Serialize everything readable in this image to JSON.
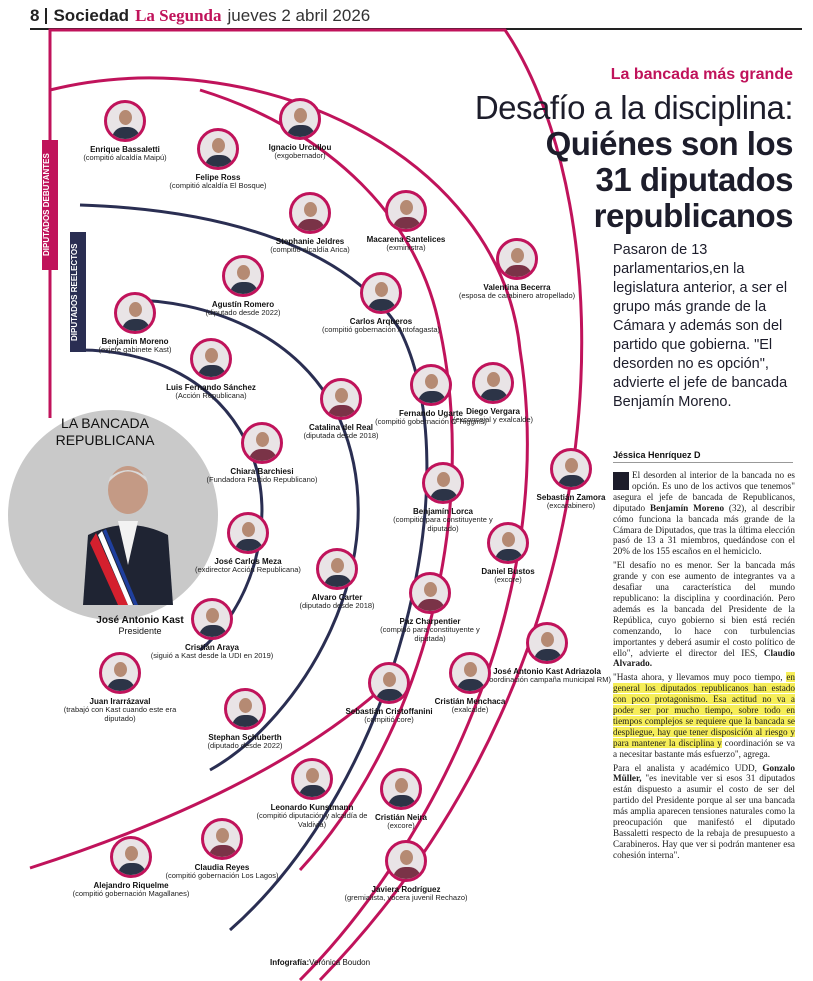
{
  "header": {
    "page_number": "8",
    "section": "Sociedad",
    "newspaper": "La Segunda",
    "date": "jueves 2 abril 2026"
  },
  "kicker": "La bancada más grande",
  "headline": {
    "line1": "Desafío a la disciplina:",
    "line2": "Quiénes son los",
    "line3": "31 diputados",
    "line4": "republicanos"
  },
  "standfirst": "Pasaron de 13 parlamentarios,en la legislatura anterior, a ser el grupo más grande de la Cámara y además son del partido que gobierna. \"El desorden no es opción\", advierte el jefe de bancada Benjamín Moreno.",
  "byline": "Jéssica Henríquez D",
  "body": {
    "p1_a": "El desorden al interior de la bancada no es opción. Es uno de los activos que tenemos\" asegura el jefe de bancada de Republicanos, diputado ",
    "p1_name": "Benjamín Moreno",
    "p1_b": " (32), al describir cómo funciona la bancada más grande de la Cámara de Diputados, que tras la última elección pasó de 13 a 31 miembros, quedándose con el 20% de los 155 escaños en el hemiciclo.",
    "p2_a": "\"El desafío no es menor. Ser la bancada más grande y con ese aumento de integrantes va a desafiar una característica del mundo republicano: la disciplina y coordinación. Pero además es la bancada del Presidente de la República, cuyo gobierno si bien está recién comenzando, lo hace con turbulencias importantes y deberá asumir el costo político de ello\", advierte el director del IES, ",
    "p2_name": "Claudio Alvarado.",
    "p3_a": "\"Hasta ahora, y llevamos muy poco tiempo, ",
    "p3_hl": "en general los diputados republicanos han estado con poco protagonismo. Esa actitud no va a poder ser por mucho tiempo, sobre todo en tiempos complejos se requiere que la bancada se despliegue, hay que tener disposición al riesgo y para mantener la disciplina y",
    "p3_b": " coordinación se va a necesitar bastante más esfuerzo\", agrega.",
    "p4_a": "Para el analista y académico UDD, ",
    "p4_name": "Gonzalo Müller,",
    "p4_b": " \"es inevitable ver si esos 31 diputados están dispuesto a asumir el costo de ser del partido del Presidente porque al ser una bancada más amplia aparecen tensiones naturales como la preocupación que manifestó el diputado Bassaletti respecto de la rebaja de presupuesto a Carabineros. Hay que ver si podrán mantener esa cohesión interna\"."
  },
  "graphic": {
    "tag_debutantes": "DIPUTADOS DEBUTANTES",
    "tag_reelectos": "DIPUTADOS REELECTOS",
    "center_title_1": "LA BANCADA",
    "center_title_2": "REPUBLICANA",
    "president_name": "José Antonio Kast",
    "president_role": "Presidente",
    "people": [
      {
        "name": "Enrique Bassaletti",
        "role": "(compitió alcaldía Maipú)"
      },
      {
        "name": "Felipe Ross",
        "role": "(compitió alcaldía El Bosque)"
      },
      {
        "name": "Ignacio Urcullou",
        "role": "(exgobernador)"
      },
      {
        "name": "Stephanie Jeldres",
        "role": "(compitió alcaldía Arica)"
      },
      {
        "name": "Macarena Santelices",
        "role": "(exministra)"
      },
      {
        "name": "Valentina Becerra",
        "role": "(esposa de carabinero atropellado)"
      },
      {
        "name": "Agustín Romero",
        "role": "(diputado desde 2022)"
      },
      {
        "name": "Carlos Arqueros",
        "role": "(compitió gobernación Antofagasta)"
      },
      {
        "name": "Benjamín Moreno",
        "role": "(exjefe gabinete Kast)"
      },
      {
        "name": "Luis Fernando Sánchez",
        "role": "(Acción Republicana)"
      },
      {
        "name": "Catalina del Real",
        "role": "(diputada desde 2018)"
      },
      {
        "name": "Fernando Ugarte",
        "role": "(compitió gobernación O´Higgins)"
      },
      {
        "name": "Diego Vergara",
        "role": "(exconcejal y exalcalde)"
      },
      {
        "name": "Chiara Barchiesi",
        "role": "(Fundadora Partido Republicano)"
      },
      {
        "name": "Sebastián Zamora",
        "role": "(excarabinero)"
      },
      {
        "name": "Benjamín Lorca",
        "role": "(compitió para constituyente y diputado)"
      },
      {
        "name": "José Carlos Meza",
        "role": "(exdirector Acción Republicana)"
      },
      {
        "name": "Daniel Bustos",
        "role": "(excore)"
      },
      {
        "name": "Alvaro Carter",
        "role": "(diputado desde 2018)"
      },
      {
        "name": "Paz Charpentier",
        "role": "(compitió para constituyente y diputada)"
      },
      {
        "name": "Cristián Araya",
        "role": "(siguió a Kast desde la UDI en 2019)"
      },
      {
        "name": "José Antonio Kast Adriazola",
        "role": "(coordinación campaña municipal RM)"
      },
      {
        "name": "Juan Irarrázaval",
        "role": "(trabajó con Kast cuando este era diputado)"
      },
      {
        "name": "Sebastián Cristoffanini",
        "role": "(compitió core)"
      },
      {
        "name": "Cristián Menchaca",
        "role": "(exalcalde)"
      },
      {
        "name": "Stephan Schuberth",
        "role": "(diputado desde 2022)"
      },
      {
        "name": "Leonardo Kunstmann",
        "role": "(compitió diputación y alcaldía de Valdivia)"
      },
      {
        "name": "Cristián Neira",
        "role": "(excore)"
      },
      {
        "name": "Claudia Reyes",
        "role": "(compitió gobernación Los Lagos)"
      },
      {
        "name": "Alejandro Riquelme",
        "role": "(compitió gobernación Magallanes)"
      },
      {
        "name": "Javiera Rodríguez",
        "role": "(gremialista, vocera juvenil Rechazo)"
      }
    ],
    "credit_label": "Infografía:",
    "credit_name": "Verónica Boudon"
  },
  "colors": {
    "accent": "#c0135b",
    "navy": "#2a2e52"
  }
}
